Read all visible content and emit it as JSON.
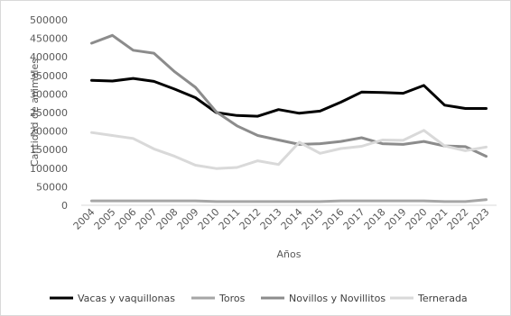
{
  "chart_data": {
    "type": "line",
    "xlabel": "Años",
    "ylabel": "Cantidad de animales",
    "ylim": [
      0,
      500000
    ],
    "yticks": [
      0,
      50000,
      100000,
      150000,
      200000,
      250000,
      300000,
      350000,
      400000,
      450000,
      500000
    ],
    "categories": [
      "2004",
      "2005",
      "2006",
      "2007",
      "2008",
      "2009",
      "2010",
      "2011",
      "2012",
      "2013",
      "2014",
      "2015",
      "2016",
      "2017",
      "2018",
      "2019",
      "2020",
      "2021",
      "2022",
      "2023"
    ],
    "grid": false,
    "legend_position": "bottom",
    "series": [
      {
        "name": "Vacas y vaquillonas",
        "color": "#000000",
        "values": [
          337000,
          335000,
          342000,
          334000,
          313000,
          290000,
          250000,
          242000,
          240000,
          258000,
          248000,
          254000,
          278000,
          305000,
          304000,
          302000,
          323000,
          270000,
          261000,
          261000
        ]
      },
      {
        "name": "Toros",
        "color": "#a6a6a6",
        "values": [
          12000,
          12000,
          12000,
          12000,
          12000,
          12000,
          10000,
          10000,
          10000,
          10000,
          10000,
          10000,
          12000,
          12000,
          12000,
          12000,
          12000,
          10000,
          10000,
          15000
        ]
      },
      {
        "name": "Novillos y Novillitos",
        "color": "#8c8c8c",
        "values": [
          437000,
          458000,
          418000,
          410000,
          360000,
          318000,
          252000,
          214000,
          188000,
          176000,
          164000,
          166000,
          172000,
          182000,
          166000,
          164000,
          172000,
          160000,
          158000,
          132000
        ]
      },
      {
        "name": "Ternerada",
        "color": "#d9d9d9",
        "values": [
          196000,
          188000,
          180000,
          152000,
          132000,
          108000,
          99000,
          102000,
          120000,
          110000,
          170000,
          140000,
          153000,
          159000,
          176000,
          175000,
          202000,
          160000,
          147000,
          157000
        ]
      }
    ]
  }
}
